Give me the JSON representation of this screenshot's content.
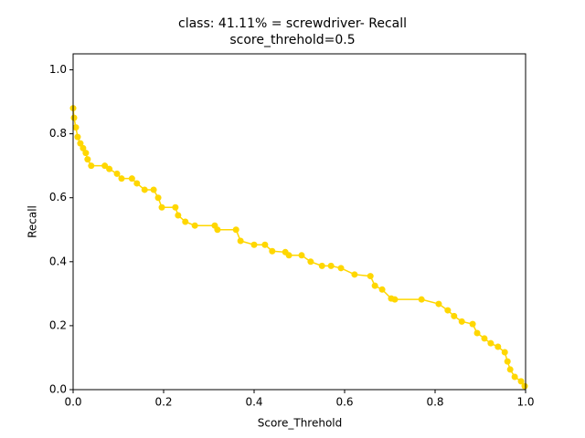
{
  "chart_data": {
    "type": "line",
    "title": "class: 41.11% = screwdriver- Recall",
    "subtitle": "score_threhold=0.5",
    "x_label": "Score_Threhold",
    "y_label": "Recall",
    "x": [
      0,
      0.002,
      0.006,
      0.01,
      0.016,
      0.022,
      0.028,
      0.032,
      0.04,
      0.07,
      0.08,
      0.097,
      0.107,
      0.13,
      0.141,
      0.158,
      0.178,
      0.188,
      0.196,
      0.226,
      0.232,
      0.248,
      0.269,
      0.313,
      0.319,
      0.36,
      0.37,
      0.4,
      0.424,
      0.44,
      0.469,
      0.477,
      0.505,
      0.525,
      0.55,
      0.57,
      0.592,
      0.622,
      0.657,
      0.667,
      0.683,
      0.703,
      0.711,
      0.77,
      0.808,
      0.828,
      0.842,
      0.859,
      0.883,
      0.893,
      0.909,
      0.923,
      0.939,
      0.954,
      0.96,
      0.966,
      0.976,
      0.99,
      0.998
    ],
    "series": [
      {
        "color": "#ffd700",
        "values": [
          0.88,
          0.85,
          0.82,
          0.79,
          0.77,
          0.755,
          0.74,
          0.72,
          0.7,
          0.7,
          0.69,
          0.675,
          0.66,
          0.66,
          0.645,
          0.625,
          0.625,
          0.6,
          0.57,
          0.57,
          0.545,
          0.525,
          0.513,
          0.513,
          0.5,
          0.5,
          0.465,
          0.453,
          0.453,
          0.433,
          0.43,
          0.42,
          0.42,
          0.4,
          0.387,
          0.387,
          0.38,
          0.36,
          0.355,
          0.325,
          0.313,
          0.285,
          0.282,
          0.282,
          0.268,
          0.248,
          0.23,
          0.213,
          0.205,
          0.177,
          0.16,
          0.145,
          0.134,
          0.117,
          0.088,
          0.063,
          0.04,
          0.026,
          0.011
        ]
      }
    ],
    "xlim": [
      0,
      1
    ],
    "ylim": [
      0,
      1.05
    ],
    "xticks": [
      {
        "value": 0,
        "label": "0.0"
      },
      {
        "value": 0.2,
        "label": "0.2"
      },
      {
        "value": 0.4,
        "label": "0.4"
      },
      {
        "value": 0.6,
        "label": "0.6"
      },
      {
        "value": 0.8,
        "label": "0.8"
      },
      {
        "value": 1,
        "label": "1.0"
      }
    ],
    "yticks": [
      {
        "value": 0,
        "label": "0.0"
      },
      {
        "value": 0.2,
        "label": "0.2"
      },
      {
        "value": 0.4,
        "label": "0.4"
      },
      {
        "value": 0.6,
        "label": "0.6"
      },
      {
        "value": 0.8,
        "label": "0.8"
      },
      {
        "value": 1,
        "label": "1.0"
      }
    ]
  }
}
